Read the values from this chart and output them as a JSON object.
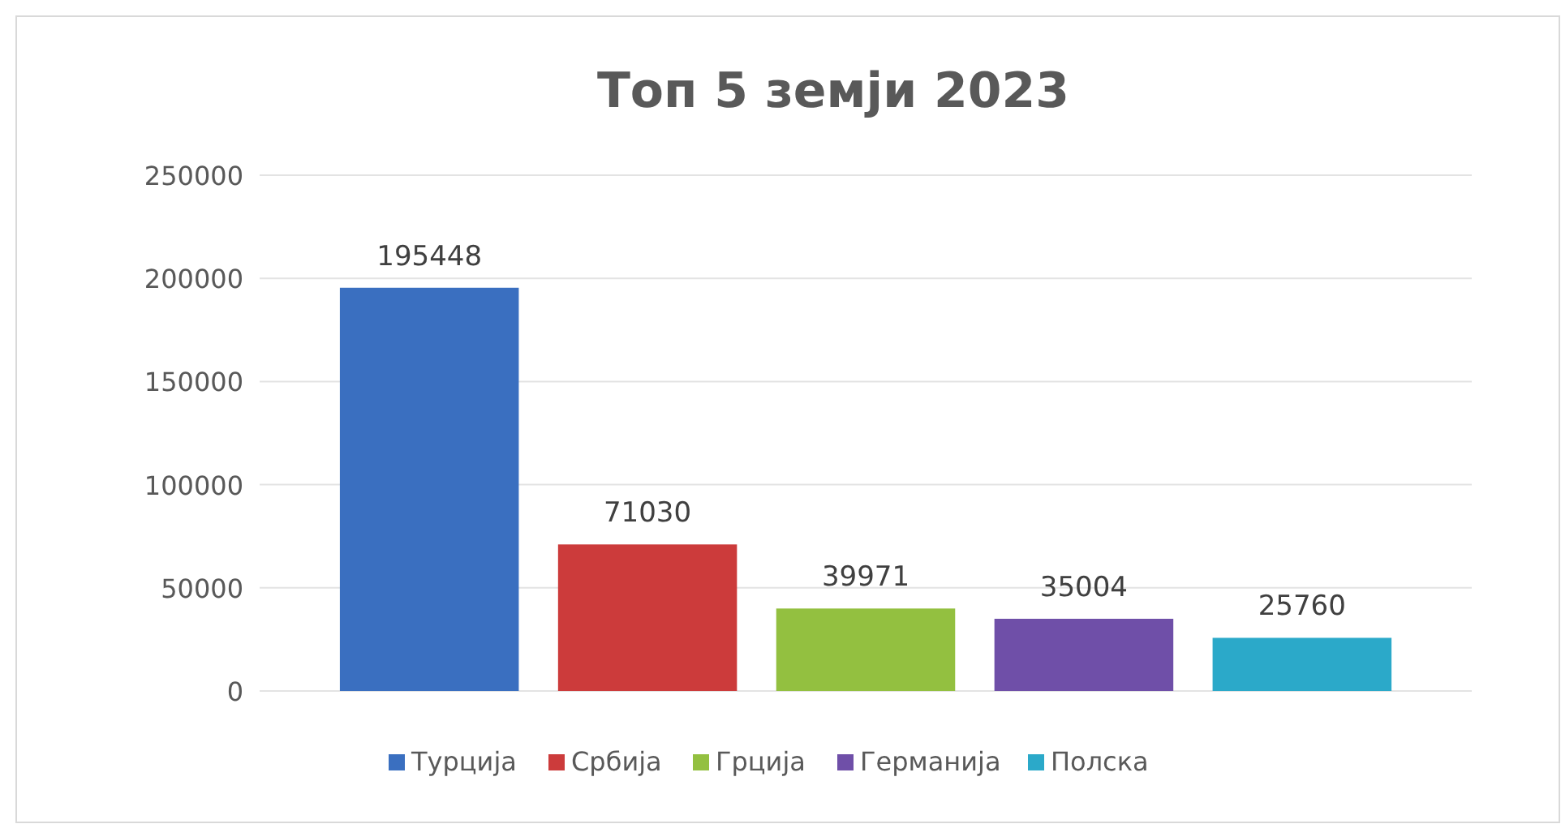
{
  "chart_data": {
    "type": "bar",
    "title": "Топ 5 земји 2023",
    "categories": [
      null
    ],
    "series": [
      {
        "name": "Турција",
        "color": "#3a6fc0",
        "values": [
          195448
        ]
      },
      {
        "name": "Србија",
        "color": "#cc3b3b",
        "values": [
          71030
        ]
      },
      {
        "name": "Грција",
        "color": "#93c040",
        "values": [
          39971
        ]
      },
      {
        "name": "Германија",
        "color": "#6f4fa8",
        "values": [
          35004
        ]
      },
      {
        "name": "Полска",
        "color": "#2ba9c9",
        "values": [
          25760
        ]
      }
    ],
    "ylim": [
      0,
      250000
    ],
    "yticks": [
      0,
      50000,
      100000,
      150000,
      200000,
      250000
    ],
    "grid": "y",
    "data_labels": true,
    "legend": "bottom",
    "tick_labels": "y"
  }
}
